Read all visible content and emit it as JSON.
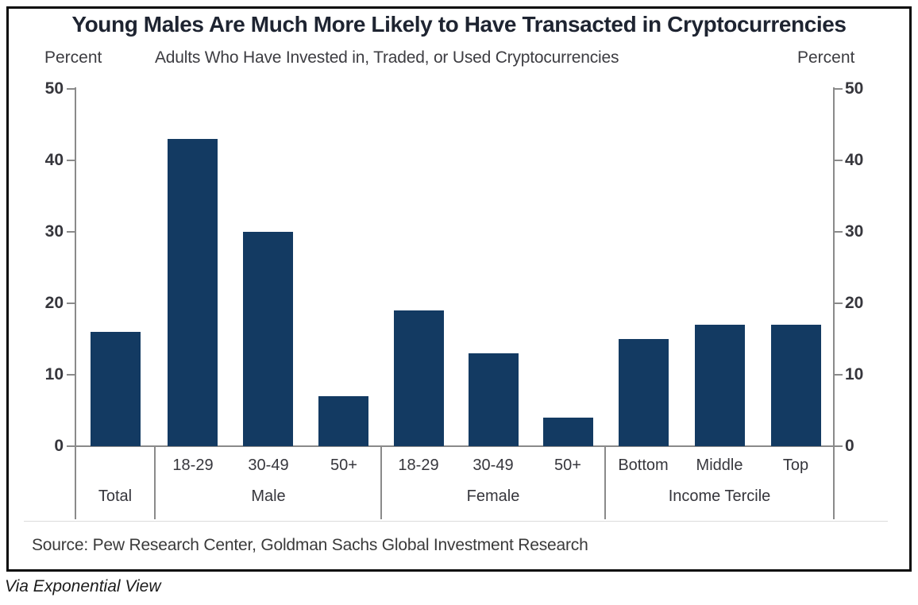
{
  "caption": "Via Exponential View",
  "colors": {
    "bar": "#133A62",
    "axis": "#8A8A8A",
    "title_text": "#1E2431",
    "label_text": "#36363C"
  },
  "chart_data": {
    "type": "bar",
    "title": "Young Males Are Much More Likely to Have Transacted in Cryptocurrencies",
    "subtitle": "Adults Who Have Invested in, Traded, or Used Cryptocurrencies",
    "ylabel_left": "Percent",
    "ylabel_right": "Percent",
    "ylim": [
      0,
      50
    ],
    "yticks": [
      0,
      10,
      20,
      30,
      40,
      50
    ],
    "grid": false,
    "legend": false,
    "groups": [
      {
        "label": "Total",
        "categories": [
          ""
        ],
        "values": [
          16
        ]
      },
      {
        "label": "Male",
        "categories": [
          "18-29",
          "30-49",
          "50+"
        ],
        "values": [
          43,
          30,
          7
        ]
      },
      {
        "label": "Female",
        "categories": [
          "18-29",
          "30-49",
          "50+"
        ],
        "values": [
          19,
          13,
          4
        ]
      },
      {
        "label": "Income Tercile",
        "categories": [
          "Bottom",
          "Middle",
          "Top"
        ],
        "values": [
          15,
          17,
          17
        ]
      }
    ],
    "source": "Source: Pew Research Center, Goldman Sachs Global Investment Research"
  }
}
